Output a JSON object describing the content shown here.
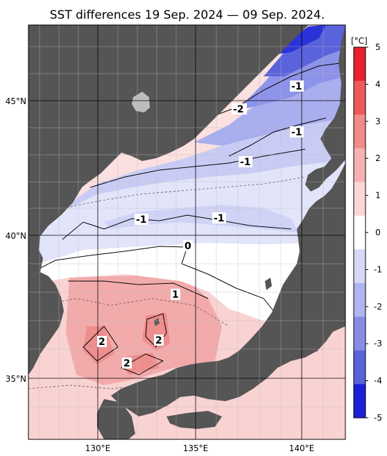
{
  "title": "SST differences 19 Sep. 2024 — 09 Sep. 2024.",
  "map": {
    "lat_labels": [
      "45°N",
      "40°N",
      "35°N"
    ],
    "lon_labels": [
      "130°E",
      "135°E",
      "140°E"
    ],
    "contour_labels": [
      "-1",
      "-2",
      "-1",
      "-1",
      "-1",
      "-1",
      "0",
      "1",
      "2",
      "2",
      "2"
    ]
  },
  "colorbar": {
    "unit": "[°C]",
    "ticks": [
      "5",
      "4",
      "3",
      "2",
      "1",
      "0",
      "-1",
      "-2",
      "-3",
      "-4",
      "-5"
    ],
    "colors_top_to_bottom": [
      "#e8212a",
      "#ee5a5a",
      "#f28a8a",
      "#f6b2b2",
      "#fad6d6",
      "#ffffff",
      "#d6d8f6",
      "#b0b4f0",
      "#868ce6",
      "#5a62dc",
      "#1a20d8"
    ]
  },
  "colors": {
    "land": "#555555",
    "grid": "#000000"
  }
}
